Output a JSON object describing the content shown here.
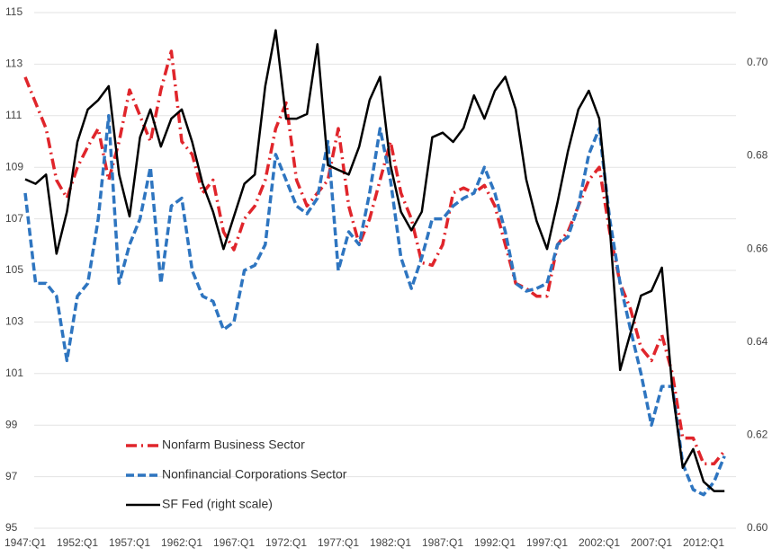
{
  "chart_data": {
    "type": "line",
    "categories": [
      "1947:Q1",
      null,
      null,
      null,
      null,
      "1952:Q1",
      null,
      null,
      null,
      null,
      "1957:Q1",
      null,
      null,
      null,
      null,
      "1962:Q1",
      null,
      null,
      null,
      null,
      "1967:Q1",
      null,
      null,
      null,
      null,
      "1972:Q1",
      null,
      null,
      null,
      null,
      "1977:Q1",
      null,
      null,
      null,
      null,
      "1982:Q1",
      null,
      null,
      null,
      null,
      "1987:Q1",
      null,
      null,
      null,
      null,
      "1992:Q1",
      null,
      null,
      null,
      null,
      "1997:Q1",
      null,
      null,
      null,
      null,
      "2002:Q1",
      null,
      null,
      null,
      null,
      "2007:Q1",
      null,
      null,
      null,
      null,
      "2012:Q1",
      null,
      null
    ],
    "series": [
      {
        "name": "Nonfarm Business Sector",
        "color": "#e0252b",
        "values": [
          112.5,
          111.5,
          110.5,
          108.5,
          107.8,
          109,
          109.8,
          110.5,
          108.5,
          110,
          112,
          111,
          110,
          112,
          113.5,
          110,
          109.5,
          108,
          108.5,
          106.5,
          105.8,
          107,
          107.5,
          108.5,
          110.5,
          111.5,
          108.5,
          107.5,
          108,
          108.5,
          110.5,
          107.5,
          106,
          107,
          108.5,
          110,
          108,
          107,
          105.3,
          105.2,
          106,
          108,
          108.2,
          108,
          108.3,
          107.5,
          106,
          104.5,
          104.3,
          104,
          104,
          106,
          106.5,
          107.5,
          108.5,
          109,
          106.5,
          104.5,
          103.5,
          102,
          101.5,
          102.5,
          101,
          98.5,
          98.5,
          97.5,
          97.5,
          98
        ]
      },
      {
        "name": "Nonfinancial Corporations Sector",
        "color": "#2e75c0",
        "values": [
          108,
          104.5,
          104.5,
          104,
          101.5,
          104,
          104.5,
          107,
          111,
          104.5,
          106,
          107,
          109,
          104.5,
          107.5,
          107.8,
          105,
          104,
          103.8,
          102.7,
          103,
          105,
          105.2,
          106,
          109.5,
          108.5,
          107.5,
          107.2,
          107.8,
          110,
          105,
          106.5,
          106,
          108,
          110.5,
          108.5,
          105.5,
          104.3,
          105.5,
          107,
          107,
          107.5,
          107.8,
          108,
          109,
          108,
          106.5,
          104.5,
          104.2,
          104.3,
          104.5,
          106,
          106.3,
          107.5,
          109.5,
          110.5,
          107,
          104.5,
          102.7,
          101,
          99,
          100.5,
          100.5,
          97.5,
          96.5,
          96.3,
          96.8,
          97.8
        ]
      },
      {
        "name": "SF Fed (right scale)",
        "color": "#000000",
        "axis": "y2",
        "values": [
          0.675,
          0.674,
          0.676,
          0.659,
          0.668,
          0.683,
          0.69,
          0.692,
          0.695,
          0.676,
          0.667,
          0.684,
          0.69,
          0.682,
          0.688,
          0.69,
          0.683,
          0.674,
          0.668,
          0.66,
          0.667,
          0.674,
          0.676,
          0.695,
          0.707,
          0.688,
          0.688,
          0.689,
          0.704,
          0.678,
          0.677,
          0.676,
          0.682,
          0.692,
          0.697,
          0.678,
          0.668,
          0.664,
          0.668,
          0.684,
          0.685,
          0.683,
          0.686,
          0.693,
          0.688,
          0.694,
          0.697,
          0.69,
          0.675,
          0.666,
          0.66,
          0.67,
          0.681,
          0.69,
          0.694,
          0.688,
          0.665,
          0.634,
          0.642,
          0.65,
          0.651,
          0.656,
          0.63,
          0.613,
          0.617,
          0.61,
          0.608,
          0.608
        ]
      }
    ],
    "ylim": [
      95,
      115
    ],
    "yticks": [
      95,
      97,
      99,
      101,
      103,
      105,
      107,
      109,
      111,
      113,
      115
    ],
    "y2lim": [
      0.6,
      0.7108
    ],
    "y2ticks": [
      {
        "value": 0.6,
        "label": "0.60"
      },
      0.62,
      0.64,
      0.66,
      0.68,
      {
        "value": 0.7,
        "label": "0.70"
      }
    ],
    "grid": true,
    "legend": "lower-left"
  }
}
